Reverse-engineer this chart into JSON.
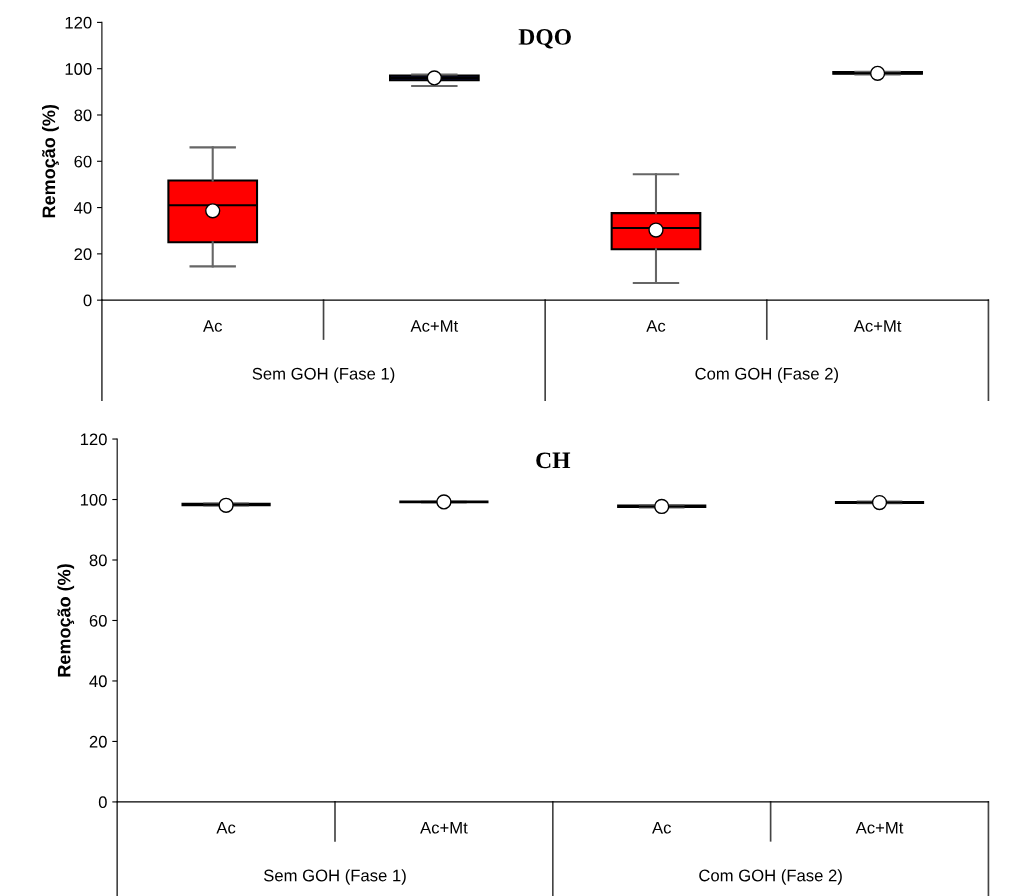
{
  "chart_data": [
    {
      "type": "box",
      "title": "DQO",
      "ylabel": "Remoção (%)",
      "categories": [
        "Ac",
        "Ac+Mt",
        "Ac",
        "Ac+Mt"
      ],
      "colors": [
        "#ff0000",
        "#1a1a6e",
        "#ff0000",
        "#1a1a6e"
      ],
      "boxes": [
        {
          "low": 14.6,
          "q1": 25,
          "median": 41,
          "q3": 51.7,
          "high": 66,
          "mean": 38.6
        },
        {
          "low": 92.5,
          "q1": 95,
          "median": 96,
          "q3": 97,
          "high": 97.5,
          "mean": 96
        },
        {
          "low": 7.4,
          "q1": 22,
          "median": 31.2,
          "q3": 37.6,
          "high": 54.4,
          "mean": 30.3
        },
        {
          "low": 97.5,
          "q1": 97.8,
          "median": 98,
          "q3": 98.5,
          "high": 98.7,
          "mean": 98
        }
      ],
      "ylim": [
        0,
        120
      ],
      "yticks": [
        0,
        20,
        40,
        60,
        80,
        100,
        120
      ],
      "grid": false,
      "annotations": [
        "Sem GOH (Fase 1)",
        "Com GOH (Fase 2)"
      ]
    },
    {
      "type": "box",
      "title": "CH",
      "ylabel": "Remoção (%)",
      "categories": [
        "Ac",
        "Ac+Mt",
        "Ac",
        "Ac+Mt"
      ],
      "colors": [
        "#2a0000",
        "#000000",
        "#2a0000",
        "#000000"
      ],
      "boxes": [
        {
          "low": 98,
          "q1": 98.1,
          "median": 98.3,
          "q3": 98.6,
          "high": 98.7,
          "mean": 98.1
        },
        {
          "low": 99,
          "q1": 99.1,
          "median": 99.2,
          "q3": 99.3,
          "high": 99.4,
          "mean": 99.2
        },
        {
          "low": 97.4,
          "q1": 97.5,
          "median": 97.7,
          "q3": 98,
          "high": 98.1,
          "mean": 97.7
        },
        {
          "low": 98.8,
          "q1": 98.9,
          "median": 99,
          "q3": 99.2,
          "high": 99.3,
          "mean": 99
        }
      ],
      "ylim": [
        0,
        120
      ],
      "yticks": [
        0,
        20,
        40,
        60,
        80,
        100,
        120
      ],
      "grid": false,
      "annotations": [
        "Sem GOH (Fase 1)",
        "Com GOH (Fase 2)"
      ]
    }
  ]
}
